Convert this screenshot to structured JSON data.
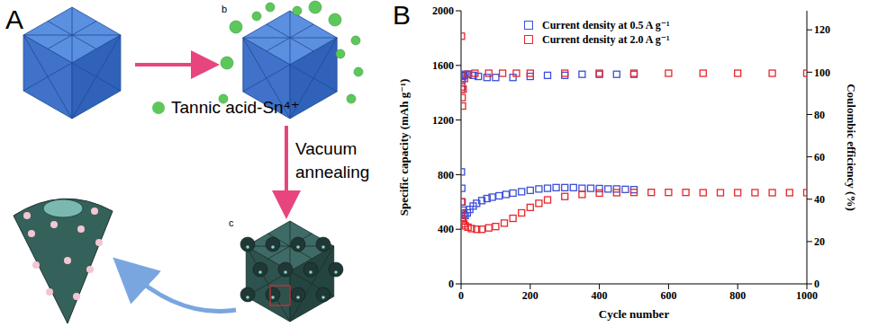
{
  "diagram": {
    "panel_letter": "A",
    "stage_labels": [
      "b",
      "c"
    ],
    "step_labels": [
      "Tannic acid-Sn⁴⁺",
      "Vacuum annealing"
    ]
  },
  "chart_data": {
    "type": "scatter",
    "panel_letter": "B",
    "x_label": "Cycle number",
    "y_label": "Specific capacity (mAh g⁻¹)",
    "y2_label": "Coulombic efficiency (%)",
    "xlim": [
      0,
      1000
    ],
    "xticks": [
      0,
      200,
      400,
      600,
      800,
      1000
    ],
    "ylim": [
      0,
      2000
    ],
    "yticks": [
      0,
      400,
      800,
      1200,
      1600,
      2000
    ],
    "y2lim": [
      0,
      129
    ],
    "y2ticks": [
      0,
      20,
      40,
      60,
      80,
      100,
      120
    ],
    "grid": false,
    "legend": "top",
    "marker": "open-square",
    "series": [
      {
        "name": "Current density at 0.5 A g⁻¹",
        "color": "#3b4fd8",
        "x": [
          1,
          2,
          3,
          5,
          8,
          12,
          18,
          25,
          35,
          45,
          60,
          75,
          90,
          110,
          130,
          150,
          175,
          200,
          225,
          250,
          275,
          300,
          325,
          350,
          375,
          400,
          425,
          450,
          475,
          500
        ],
        "values": [
          820,
          700,
          600,
          540,
          510,
          500,
          520,
          545,
          570,
          590,
          610,
          625,
          635,
          645,
          655,
          665,
          675,
          685,
          695,
          700,
          705,
          705,
          705,
          700,
          700,
          698,
          695,
          695,
          692,
          690
        ]
      },
      {
        "name": "Current density at 2.0 A g⁻¹",
        "color": "#e8262a",
        "x": [
          1,
          2,
          3,
          5,
          8,
          12,
          20,
          30,
          45,
          60,
          80,
          100,
          125,
          150,
          175,
          200,
          225,
          250,
          300,
          350,
          400,
          450,
          500,
          550,
          600,
          650,
          700,
          750,
          800,
          850,
          900,
          950,
          1000
        ],
        "values": [
          600,
          520,
          480,
          460,
          440,
          425,
          415,
          405,
          400,
          400,
          410,
          420,
          445,
          480,
          520,
          560,
          590,
          615,
          640,
          655,
          665,
          668,
          670,
          670,
          670,
          670,
          668,
          668,
          668,
          668,
          668,
          668,
          668
        ]
      },
      {
        "name": "Current density at 0.5 A g⁻¹",
        "color": "#3b4fd8",
        "axis": "y2",
        "x": [
          1,
          2,
          3,
          5,
          8,
          12,
          20,
          35,
          50,
          75,
          100,
          150,
          200,
          250,
          300,
          350,
          400,
          450,
          500
        ],
        "values": [
          92,
          96,
          97,
          98,
          98.5,
          99,
          99,
          98.5,
          98,
          97.5,
          97.5,
          97.5,
          98,
          98.5,
          98.5,
          99,
          99,
          99,
          99
        ]
      },
      {
        "name": "Current density at 2.0 A g⁻¹",
        "color": "#e8262a",
        "axis": "y2",
        "x": [
          1,
          2,
          3,
          4,
          6,
          10,
          20,
          40,
          80,
          120,
          160,
          200,
          300,
          400,
          500,
          600,
          700,
          800,
          900,
          1000
        ],
        "values": [
          117,
          93,
          88,
          84,
          92,
          97,
          99,
          99.5,
          99.5,
          99.5,
          99.5,
          99.5,
          99.5,
          99.5,
          99.5,
          99.5,
          99.5,
          99.5,
          99.5,
          99.5
        ]
      }
    ]
  }
}
